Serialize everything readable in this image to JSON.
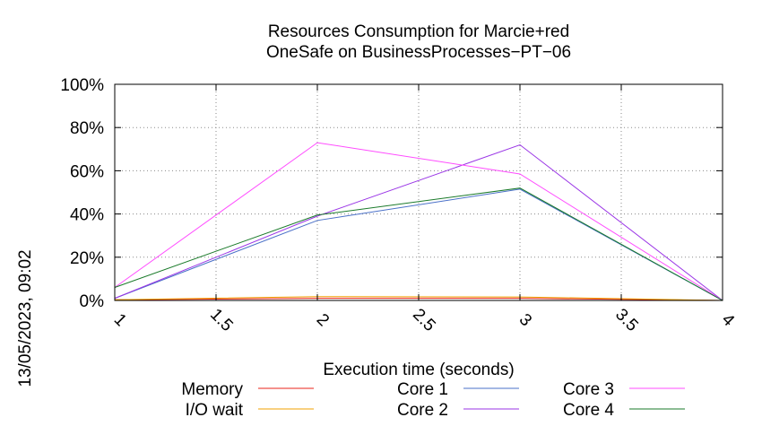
{
  "chart_data": {
    "type": "line",
    "title": [
      "Resources Consumption for Marcie+red",
      "OneSafe on BusinessProcesses−PT−06"
    ],
    "xlabel": "Execution time (seconds)",
    "ylabel": "",
    "side_label": "13/05/2023, 09:02",
    "xlim": [
      1,
      4
    ],
    "ylim": [
      0,
      100
    ],
    "x_ticks": [
      1,
      1.5,
      2,
      2.5,
      3,
      3.5,
      4
    ],
    "x_tick_labels": [
      "1",
      "1.5",
      "2",
      "2.5",
      "3",
      "3.5",
      "4"
    ],
    "y_ticks": [
      0,
      20,
      40,
      60,
      80,
      100
    ],
    "y_tick_labels": [
      "0%",
      "20%",
      "40%",
      "60%",
      "80%",
      "100%"
    ],
    "grid": true,
    "legend_position": "bottom",
    "x": [
      1,
      2,
      3,
      4
    ],
    "series": [
      {
        "name": "Memory",
        "color": "#e8231a",
        "values": [
          0.3,
          1.0,
          1.0,
          0
        ]
      },
      {
        "name": "I/O wait",
        "color": "#f0a000",
        "values": [
          0.3,
          1.8,
          1.6,
          0
        ]
      },
      {
        "name": "Core 1",
        "color": "#4a70c8",
        "values": [
          1.0,
          37,
          51.5,
          0
        ]
      },
      {
        "name": "Core 2",
        "color": "#9a35e6",
        "values": [
          1.0,
          39,
          72,
          0
        ]
      },
      {
        "name": "Core 3",
        "color": "#ff4cff",
        "values": [
          6.0,
          73,
          58.5,
          0
        ]
      },
      {
        "name": "Core 4",
        "color": "#1a7a2a",
        "values": [
          6.0,
          39.5,
          52,
          0
        ]
      }
    ]
  }
}
